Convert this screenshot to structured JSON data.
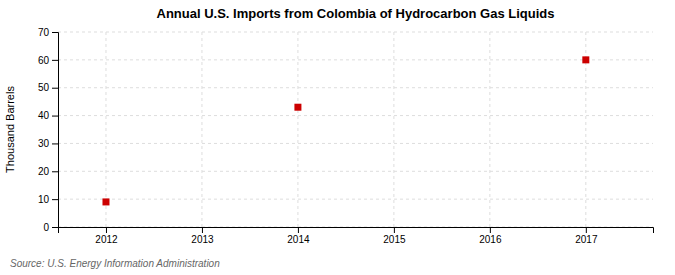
{
  "chart_data": {
    "type": "scatter",
    "title": "Annual U.S. Imports from Colombia of Hydrocarbon Gas Liquids",
    "ylabel": "Thousand Barrels",
    "annotation": "Source: U.S. Energy Information Administration",
    "x": [
      2012,
      2014,
      2017
    ],
    "values": [
      9,
      43,
      60
    ],
    "color": "#cc0000",
    "marker": "square",
    "xlim": [
      2011.5,
      2017.7
    ],
    "ylim": [
      0,
      70
    ],
    "xticks": [
      2012,
      2013,
      2014,
      2015,
      2016,
      2017
    ],
    "yticks": [
      0,
      10,
      20,
      30,
      40,
      50,
      60,
      70
    ],
    "grid": true
  }
}
